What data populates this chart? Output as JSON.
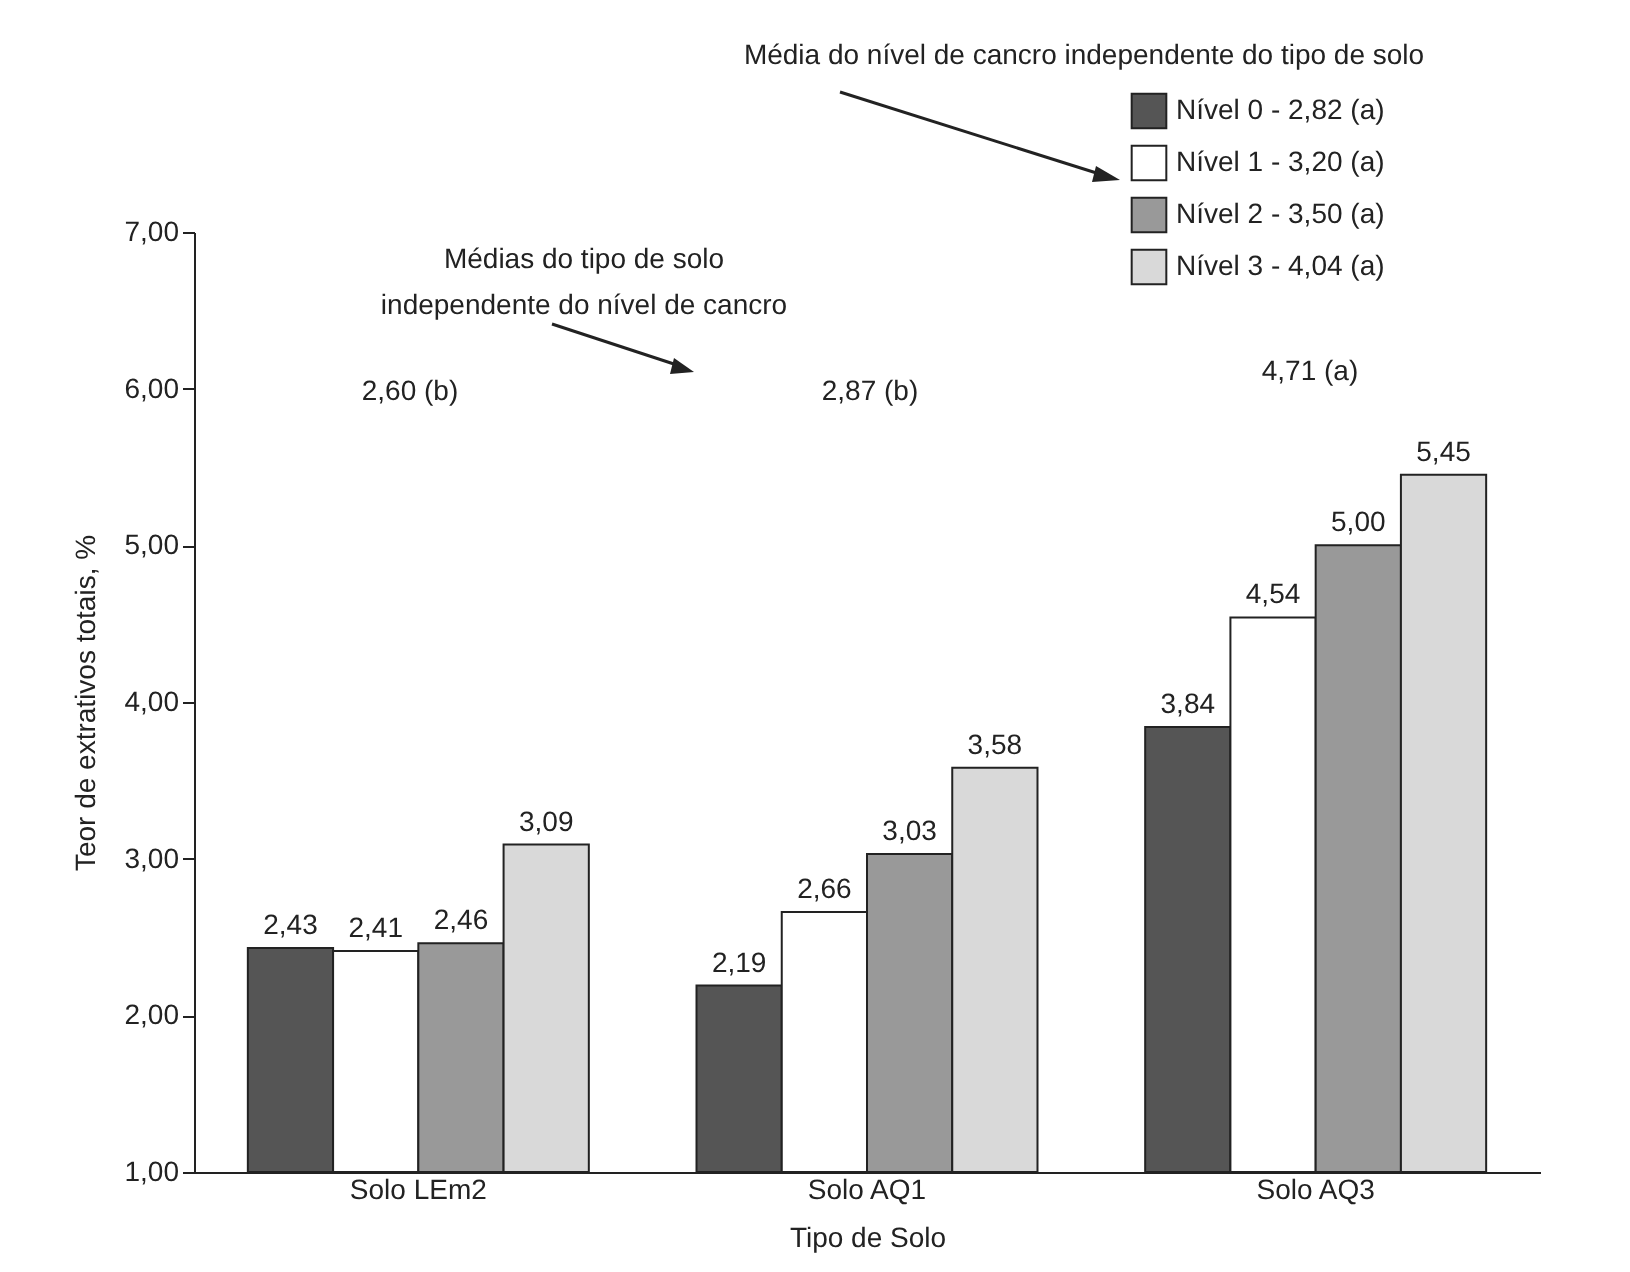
{
  "chart_data": {
    "type": "bar",
    "xlabel": "Tipo de Solo",
    "ylabel": "Teor de extrativos totais, %",
    "categories": [
      "Solo LEm2",
      "Solo AQ1",
      "Solo AQ3"
    ],
    "series": [
      {
        "name": "Nível 0 - 2,82 (a)",
        "color": "#555555",
        "values": [
          2.43,
          2.19,
          3.84
        ],
        "value_labels": [
          "2,43",
          "2,19",
          "3,84"
        ]
      },
      {
        "name": "Nível 1 - 3,20 (a)",
        "color": "#ffffff",
        "values": [
          2.41,
          2.66,
          4.54
        ],
        "value_labels": [
          "2,41",
          "2,66",
          "4,54"
        ]
      },
      {
        "name": "Nível 2 - 3,50 (a)",
        "color": "#999999",
        "values": [
          2.46,
          3.03,
          5.0
        ],
        "value_labels": [
          "2,46",
          "3,03",
          "5,00"
        ]
      },
      {
        "name": "Nível 3 - 4,04 (a)",
        "color": "#d9d9d9",
        "values": [
          3.09,
          3.58,
          5.45
        ],
        "value_labels": [
          "3,09",
          "3,58",
          "5,45"
        ]
      }
    ],
    "ylim": [
      1,
      7
    ],
    "yticks": [
      {
        "value": 1,
        "label": "1,00"
      },
      {
        "value": 2,
        "label": "2,00"
      },
      {
        "value": 3,
        "label": "3,00"
      },
      {
        "value": 4,
        "label": "4,00"
      },
      {
        "value": 5,
        "label": "5,00"
      },
      {
        "value": 6,
        "label": "6,00"
      },
      {
        "value": 7,
        "label": "7,00"
      }
    ],
    "legend": "top right",
    "annotations": [
      "Média do nível de cancro independente do tipo de solo",
      "Médias do tipo de solo independente do nível de cancro",
      "2,60 (b)",
      "2,87 (b)",
      "4,71 (a)"
    ]
  }
}
